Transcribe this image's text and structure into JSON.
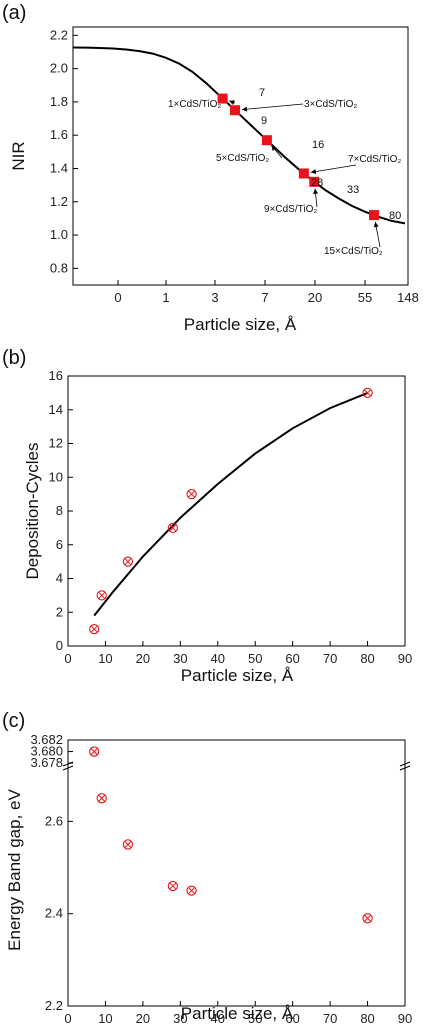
{
  "chart_data": [
    {
      "panel_label": "(a)",
      "type": "line",
      "xlabel": "Particle size, Å",
      "ylabel": "NIR",
      "ylim": [
        0.7,
        2.25
      ],
      "x_tick_labels": [
        "0",
        "1",
        "3",
        "7",
        "20",
        "55",
        "148"
      ],
      "y_ticks": [
        "0.8",
        "1.0",
        "1.2",
        "1.4",
        "1.6",
        "1.8",
        "2.0",
        "2.2"
      ],
      "curve_y": [
        2.127,
        2.126,
        2.124,
        2.121,
        2.115,
        2.105,
        2.09,
        2.065,
        2.03,
        1.98,
        1.915,
        1.84,
        1.765,
        1.69,
        1.615,
        1.54,
        1.465,
        1.395,
        1.33,
        1.27,
        1.22,
        1.175,
        1.14,
        1.11,
        1.085,
        1.07
      ],
      "points": [
        {
          "size": "7",
          "nir": 1.82,
          "sample": "1×CdS/TiO₂"
        },
        {
          "size": "9",
          "nir": 1.75,
          "sample": "3×CdS/TiO₂"
        },
        {
          "size": "16",
          "nir": 1.57,
          "sample": "5×CdS/TiO₂"
        },
        {
          "size": "28",
          "nir": 1.37,
          "sample": "7×CdS/TiO₂"
        },
        {
          "size": "33",
          "nir": 1.32,
          "sample": "9×CdS/TiO₂"
        },
        {
          "size": "80",
          "nir": 1.12,
          "sample": "15×CdS/TiO₂"
        }
      ],
      "marker_color": "#e8141c",
      "curve_color": "#000000"
    },
    {
      "panel_label": "(b)",
      "type": "scatter",
      "xlabel": "Particle size, Å",
      "ylabel": "Deposition-Cycles",
      "xlim": [
        0,
        90
      ],
      "ylim": [
        0,
        16
      ],
      "x_ticks": [
        "0",
        "10",
        "20",
        "30",
        "40",
        "50",
        "60",
        "70",
        "80",
        "90"
      ],
      "y_ticks": [
        "0",
        "2",
        "4",
        "6",
        "8",
        "10",
        "12",
        "14",
        "16"
      ],
      "x": [
        7,
        9,
        16,
        28,
        33,
        80
      ],
      "y": [
        1,
        3,
        5,
        7,
        9,
        15
      ],
      "fit_curve": {
        "x": [
          7,
          12,
          20,
          30,
          40,
          50,
          60,
          70,
          80
        ],
        "y": [
          1.8,
          3.2,
          5.3,
          7.6,
          9.6,
          11.4,
          12.9,
          14.1,
          15.0
        ]
      },
      "marker_color": "#e8141c"
    },
    {
      "panel_label": "(c)",
      "type": "scatter",
      "xlabel": "Particle size, Å",
      "ylabel": "Energy Band gap, eV",
      "xlim": [
        0,
        90
      ],
      "broken_y_axis": true,
      "upper_segment": {
        "ylim": [
          3.6775,
          3.682
        ],
        "y_ticks": [
          "3.678",
          "3.680",
          "3.682"
        ]
      },
      "lower_segment": {
        "ylim": [
          2.2,
          2.72
        ],
        "y_ticks": [
          "2.2",
          "2.4",
          "2.6"
        ]
      },
      "x_ticks": [
        "0",
        "10",
        "20",
        "30",
        "40",
        "50",
        "60",
        "70",
        "80",
        "90"
      ],
      "x": [
        7,
        9,
        16,
        28,
        33,
        80
      ],
      "y": [
        3.68,
        2.65,
        2.55,
        2.46,
        2.45,
        2.39
      ],
      "marker_color": "#e8141c"
    }
  ]
}
